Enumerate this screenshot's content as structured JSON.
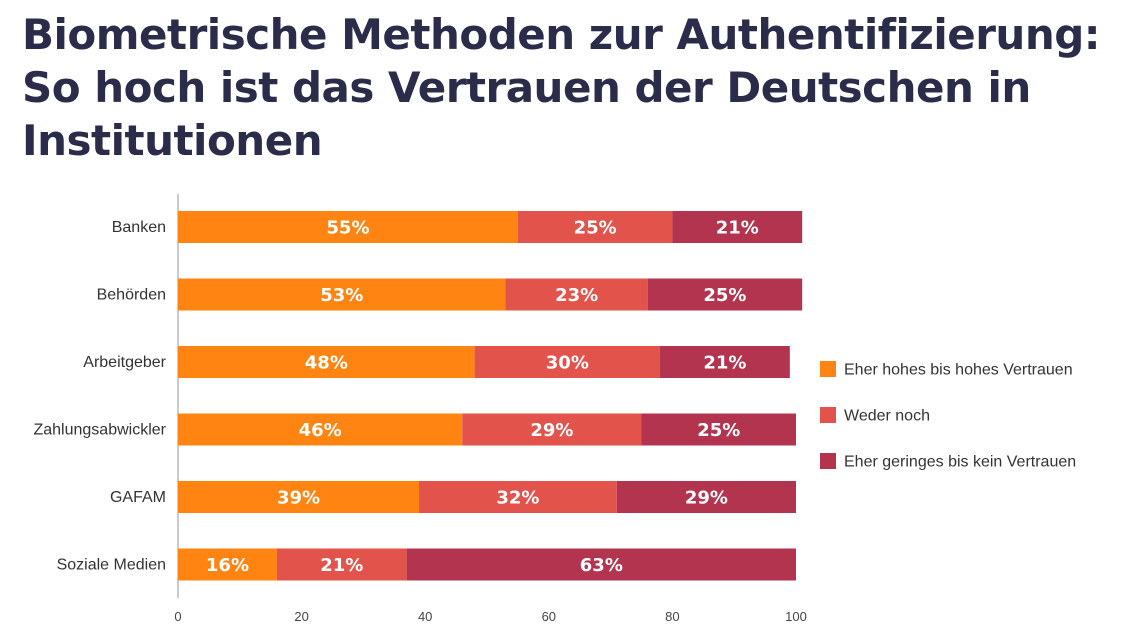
{
  "title": {
    "line1": "Biometrische Methoden zur Authentifizierung:",
    "line2": "So hoch ist das Vertrauen der Deutschen in",
    "line3": "Institutionen"
  },
  "chart_data": {
    "type": "bar",
    "orientation": "horizontal",
    "stacked": true,
    "categories": [
      "Banken",
      "Behörden",
      "Arbeitgeber",
      "Zahlungsabwickler",
      "GAFAM",
      "Soziale Medien"
    ],
    "series": [
      {
        "name": "Eher hohes bis hohes Vertrauen",
        "color": "#ff8412",
        "values": [
          55,
          53,
          48,
          46,
          39,
          16
        ]
      },
      {
        "name": "Weder noch",
        "color": "#e2534b",
        "values": [
          25,
          23,
          30,
          29,
          32,
          21
        ]
      },
      {
        "name": "Eher geringes bis kein Vertrauen",
        "color": "#b2344e",
        "values": [
          21,
          25,
          21,
          25,
          29,
          63
        ]
      }
    ],
    "data_label_suffix": "%",
    "xlim": [
      0,
      100
    ],
    "xticks": [
      0,
      20,
      40,
      60,
      80,
      100
    ],
    "legend_position": "right",
    "grid": false
  }
}
